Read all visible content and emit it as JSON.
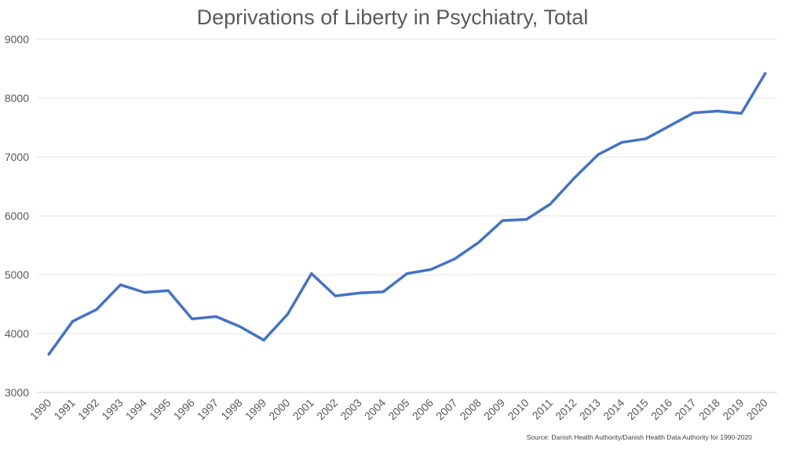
{
  "chart_data": {
    "type": "line",
    "title": "Deprivations of Liberty in Psychiatry, Total",
    "xlabel": "",
    "ylabel": "",
    "ylim": [
      3000,
      9000
    ],
    "yticks": [
      3000,
      4000,
      5000,
      6000,
      7000,
      8000,
      9000
    ],
    "grid": true,
    "categories": [
      "1990",
      "1991",
      "1992",
      "1993",
      "1994",
      "1995",
      "1996",
      "1997",
      "1998",
      "1999",
      "2000",
      "2001",
      "2002",
      "2003",
      "2004",
      "2005",
      "2006",
      "2007",
      "2008",
      "2009",
      "2010",
      "2011",
      "2012",
      "2013",
      "2014",
      "2015",
      "2016",
      "2017",
      "2018",
      "2019",
      "2020"
    ],
    "series": [
      {
        "name": "Total",
        "color": "#4472c4",
        "values": [
          3650,
          4210,
          4410,
          4830,
          4700,
          4730,
          4250,
          4290,
          4120,
          3890,
          4330,
          5020,
          4640,
          4690,
          4710,
          5020,
          5090,
          5270,
          5550,
          5920,
          5940,
          6200,
          6640,
          7040,
          7250,
          7310,
          7530,
          7750,
          7780,
          7740,
          8420
        ]
      }
    ],
    "source": "Source: Danish Health Authority/Danish  Health Data Authority for 1990-2020"
  }
}
